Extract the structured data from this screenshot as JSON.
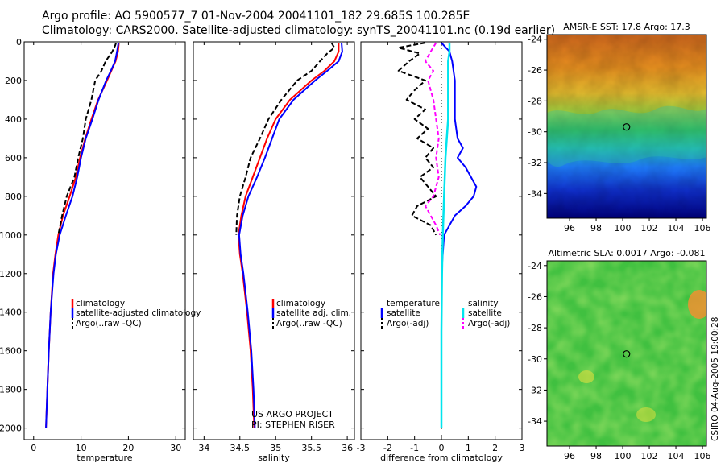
{
  "header": {
    "title_line1": "Argo profile: AO 5900577_7 01-Nov-2004 20041101_182 29.685S 100.285E",
    "title_line2": "Climatology: CARS2000. Satellite-adjusted climatology: synTS_20041101.nc (0.19d earlier)"
  },
  "colors": {
    "climatology": "#ff0000",
    "satellite": "#0000ff",
    "argo": "#000000",
    "salinity_diff": "#00e5ee",
    "argo_sal_diff": "#ff00ff"
  },
  "credits": {
    "project": "US ARGO PROJECT",
    "pi": "PI: STEPHEN RISER",
    "csiro": "CSIRO 04-Aug-2005 19:00:28"
  },
  "chart_data": [
    {
      "type": "line",
      "name": "temperature-profile",
      "xlabel": "temperature",
      "ylabel": "",
      "xlim": [
        -2,
        32
      ],
      "ylim": [
        2060,
        0
      ],
      "xticks": [
        0,
        10,
        20,
        30
      ],
      "yticks": [
        0,
        200,
        400,
        600,
        800,
        1000,
        1200,
        1400,
        1600,
        1800,
        2000
      ],
      "legend": [
        "climatology",
        "satellite-adjusted climatology",
        "Argo(..raw -QC)"
      ],
      "series": [
        {
          "name": "climatology",
          "depth": [
            5,
            50,
            100,
            150,
            200,
            300,
            400,
            500,
            600,
            700,
            800,
            900,
            1000,
            1100,
            1200,
            1400,
            1600,
            1800,
            2000
          ],
          "values": [
            18.0,
            17.8,
            17.3,
            16.4,
            15.5,
            13.6,
            12.2,
            10.9,
            9.8,
            8.9,
            7.6,
            6.2,
            5.2,
            4.6,
            4.1,
            3.6,
            3.2,
            2.9,
            2.6
          ]
        },
        {
          "name": "satellite-adjusted climatology",
          "depth": [
            5,
            50,
            100,
            150,
            200,
            300,
            400,
            500,
            600,
            700,
            800,
            900,
            1000,
            1100,
            1200,
            1400,
            1600,
            1800,
            2000
          ],
          "values": [
            17.9,
            17.6,
            17.2,
            16.3,
            15.3,
            13.7,
            12.4,
            11.0,
            10.0,
            9.2,
            8.2,
            6.8,
            5.5,
            4.7,
            4.2,
            3.6,
            3.2,
            2.9,
            2.6
          ]
        },
        {
          "name": "Argo(..raw -QC)",
          "depth": [
            5,
            20,
            50,
            100,
            150,
            200,
            300,
            400,
            500,
            600,
            700,
            800,
            900,
            1000
          ],
          "values": [
            17.4,
            17.2,
            16.6,
            15.2,
            14.3,
            13.0,
            12.2,
            11.0,
            10.4,
            9.4,
            8.6,
            7.0,
            6.0,
            5.2
          ]
        }
      ]
    },
    {
      "type": "line",
      "name": "salinity-profile",
      "xlabel": "salinity",
      "ylabel": "",
      "xlim": [
        33.85,
        36.1
      ],
      "ylim": [
        2060,
        0
      ],
      "xticks": [
        34,
        34.5,
        35,
        35.5,
        36
      ],
      "legend": [
        "climatology",
        "satellite adj. clim.",
        "Argo(..raw -QC)"
      ],
      "series": [
        {
          "name": "climatology",
          "depth": [
            5,
            50,
            100,
            150,
            200,
            300,
            400,
            500,
            600,
            700,
            800,
            900,
            1000,
            1100,
            1200,
            1400,
            1600,
            1800,
            2000
          ],
          "values": [
            35.88,
            35.88,
            35.82,
            35.68,
            35.5,
            35.2,
            35.0,
            34.88,
            34.78,
            34.68,
            34.58,
            34.52,
            34.48,
            34.5,
            34.54,
            34.6,
            34.65,
            34.68,
            34.7
          ]
        },
        {
          "name": "satellite adj. clim.",
          "depth": [
            5,
            50,
            100,
            150,
            200,
            300,
            400,
            500,
            600,
            700,
            800,
            900,
            1000,
            1100,
            1200,
            1400,
            1600,
            1800,
            2000
          ],
          "values": [
            35.92,
            35.93,
            35.88,
            35.72,
            35.55,
            35.25,
            35.05,
            34.95,
            34.85,
            34.74,
            34.62,
            34.54,
            34.49,
            34.51,
            34.55,
            34.61,
            34.66,
            34.69,
            34.71
          ]
        },
        {
          "name": "Argo(..raw -QC)",
          "depth": [
            5,
            30,
            60,
            100,
            150,
            200,
            300,
            400,
            500,
            600,
            700,
            800,
            900,
            1000
          ],
          "values": [
            35.78,
            35.82,
            35.72,
            35.62,
            35.5,
            35.3,
            35.08,
            34.9,
            34.78,
            34.65,
            34.58,
            34.5,
            34.46,
            34.45
          ]
        }
      ]
    },
    {
      "type": "line",
      "name": "difference-profile",
      "xlabel": "difference from climatology",
      "ylabel": "",
      "xlim": [
        -3,
        3
      ],
      "ylim": [
        2060,
        0
      ],
      "xticks": [
        -3,
        -2,
        -1,
        0,
        1,
        2,
        3
      ],
      "legend_left": [
        "temperature",
        "satellite",
        "Argo(-adj)"
      ],
      "legend_right": [
        "salinity",
        "satellite",
        "Argo(-adj)"
      ],
      "series": [
        {
          "name": "temperature satellite",
          "depth": [
            5,
            50,
            100,
            200,
            300,
            400,
            500,
            550,
            600,
            650,
            700,
            750,
            800,
            850,
            900,
            1000,
            1200,
            1500,
            1800,
            2000
          ],
          "values": [
            0.0,
            0.3,
            0.4,
            0.5,
            0.5,
            0.5,
            0.6,
            0.8,
            0.6,
            0.9,
            1.1,
            1.3,
            1.2,
            0.9,
            0.5,
            0.1,
            0.0,
            0.0,
            0.0,
            0.0
          ]
        },
        {
          "name": "salinity satellite",
          "depth": [
            5,
            50,
            100,
            200,
            400,
            600,
            800,
            1000,
            1200,
            1500,
            1800,
            2000
          ],
          "values": [
            0.3,
            0.3,
            0.25,
            0.25,
            0.25,
            0.15,
            0.1,
            0.05,
            0.02,
            0.0,
            0.0,
            0.0
          ]
        },
        {
          "name": "temperature Argo(-adj)",
          "depth": [
            5,
            30,
            60,
            100,
            150,
            200,
            250,
            300,
            350,
            400,
            450,
            500,
            550,
            600,
            650,
            700,
            750,
            800,
            850,
            900,
            950,
            1000
          ],
          "values": [
            -0.6,
            -1.6,
            -0.8,
            -1.2,
            -1.6,
            -0.6,
            -1.0,
            -1.3,
            -0.6,
            -1.0,
            -0.5,
            -0.9,
            -0.3,
            -0.6,
            -0.3,
            -0.8,
            -0.5,
            -0.2,
            -0.9,
            -1.1,
            -0.4,
            -0.2
          ]
        },
        {
          "name": "salinity Argo(-adj)",
          "depth": [
            5,
            50,
            100,
            150,
            200,
            300,
            400,
            500,
            600,
            700,
            800,
            850,
            900,
            950,
            1000
          ],
          "values": [
            -0.2,
            -0.4,
            -0.6,
            -0.3,
            -0.5,
            -0.3,
            -0.2,
            -0.1,
            -0.2,
            -0.1,
            -0.3,
            -0.6,
            -0.4,
            -0.2,
            -0.05
          ]
        }
      ]
    },
    {
      "type": "heatmap",
      "name": "sst-map",
      "title": "AMSR-E SST: 17.8 Argo: 17.3",
      "xlim": [
        94.3,
        106.3
      ],
      "ylim": [
        -35.6,
        -23.7
      ],
      "xticks": [
        96,
        98,
        100,
        102,
        104,
        106
      ],
      "yticks": [
        -24,
        -26,
        -28,
        -30,
        -32,
        -34
      ],
      "marker": {
        "lon": 100.285,
        "lat": -29.685
      }
    },
    {
      "type": "heatmap",
      "name": "sla-map",
      "title": "Altimetric SLA: 0.0017 Argo: -0.081",
      "xlim": [
        94.3,
        106.3
      ],
      "ylim": [
        -35.6,
        -23.7
      ],
      "xticks": [
        96,
        98,
        100,
        102,
        104,
        106
      ],
      "yticks": [
        -24,
        -26,
        -28,
        -30,
        -32,
        -34
      ],
      "marker": {
        "lon": 100.285,
        "lat": -29.685
      }
    }
  ]
}
